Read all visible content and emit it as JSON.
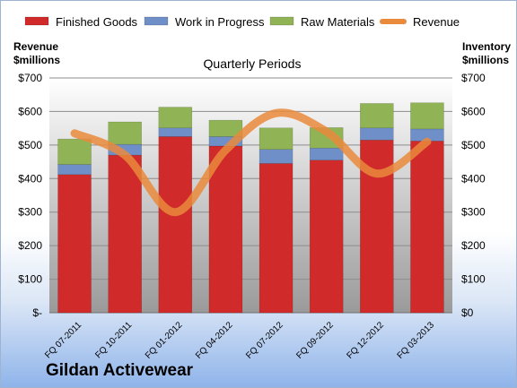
{
  "chart_data": {
    "type": "bar",
    "stacked": true,
    "title": "Quarterly Periods",
    "company": "Gildan Activewear",
    "y_left_label": [
      "Revenue",
      "$millions"
    ],
    "y_right_label": [
      "Inventory",
      "$millions"
    ],
    "categories": [
      "FQ 07-2011",
      "FQ 10-2011",
      "FQ 01-2012",
      "FQ 04-2012",
      "FQ 07-2012",
      "FQ 09-2012",
      "FQ 12-2012",
      "FQ 03-2013"
    ],
    "ylim": [
      0,
      700
    ],
    "left_ticks": [
      "$-",
      "$100",
      "$200",
      "$300",
      "$400",
      "$500",
      "$600",
      "$700"
    ],
    "right_ticks": [
      "$0",
      "$100",
      "$200",
      "$300",
      "$400",
      "$500",
      "$600",
      "$700"
    ],
    "series": [
      {
        "name": "Finished Goods",
        "color": "#d02a2a",
        "values": [
          412,
          470,
          525,
          497,
          445,
          455,
          515,
          512
        ]
      },
      {
        "name": "Work in Progress",
        "color": "#6f8fc8",
        "values": [
          30,
          32,
          26,
          28,
          42,
          36,
          36,
          36
        ]
      },
      {
        "name": "Raw Materials",
        "color": "#90b355",
        "values": [
          76,
          67,
          62,
          49,
          64,
          61,
          73,
          78
        ]
      }
    ],
    "line_series": {
      "name": "Revenue",
      "color": "#ea8a3c",
      "values": [
        535,
        470,
        300,
        485,
        595,
        540,
        415,
        510
      ]
    },
    "plot_background": "#a6a6a6",
    "grid": true,
    "legend_position": "top"
  }
}
